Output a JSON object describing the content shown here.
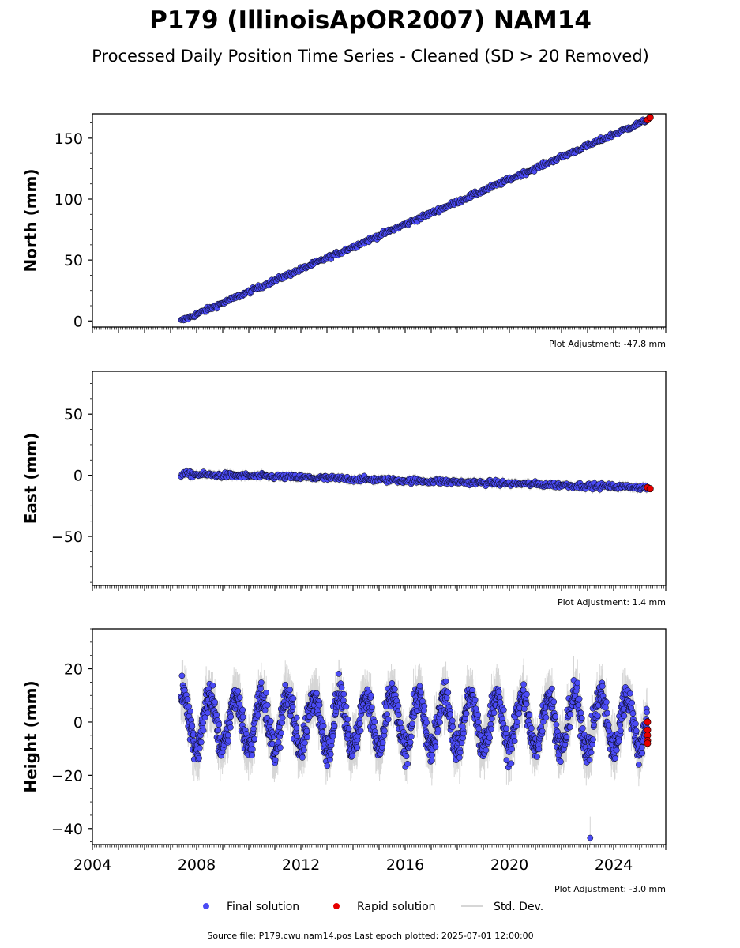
{
  "title": "P179 (IllinoisApOR2007) NAM14",
  "subtitle": "Processed Daily Position Time Series - Cleaned (SD > 20 Removed)",
  "source_text": "Source file: P179.cwu.nam14.pos  Last epoch plotted: 2025-07-01 12:00:00",
  "colors": {
    "final": "#4b4bf5",
    "rapid": "#e60000",
    "stddev": "#b4b4b4",
    "edge": "#000000"
  },
  "legend": {
    "position": "bottom-center",
    "final": "Final solution",
    "rapid": "Rapid solution",
    "stddev": "Std. Dev."
  },
  "chart_data": [
    {
      "type": "scatter",
      "ylabel": "North (mm)",
      "adjustment": "Plot Adjustment: -47.8 mm",
      "xlim": [
        2004,
        2026
      ],
      "ylim": [
        -5,
        170
      ],
      "yticks": [
        0,
        50,
        100,
        150
      ],
      "grid": false,
      "final_trend": {
        "x": [
          2007.4,
          2025.3
        ],
        "y": [
          0,
          165
        ]
      },
      "rapid_points": {
        "x": [
          2025.3,
          2025.4
        ],
        "y": [
          165,
          167
        ]
      }
    },
    {
      "type": "scatter",
      "ylabel": "East (mm)",
      "adjustment": "Plot Adjustment: 1.4 mm",
      "xlim": [
        2004,
        2026
      ],
      "ylim": [
        -90,
        85
      ],
      "yticks": [
        -50,
        0,
        50
      ],
      "grid": false,
      "final_trend": {
        "x": [
          2007.4,
          2025.3
        ],
        "y": [
          1,
          -10
        ]
      },
      "rapid_points": {
        "x": [
          2025.3,
          2025.4
        ],
        "y": [
          -10,
          -11
        ]
      }
    },
    {
      "type": "scatter",
      "ylabel": "Height (mm)",
      "adjustment": "Plot Adjustment: -3.0 mm",
      "xlim": [
        2004,
        2026
      ],
      "ylim": [
        -46,
        35
      ],
      "yticks": [
        -40,
        -20,
        0,
        20
      ],
      "grid": false,
      "final_seasonal": {
        "x_start": 2007.4,
        "x_end": 2025.3,
        "mean": 0,
        "amplitude": 10
      },
      "outlier": {
        "x": 2023.1,
        "y": -43.5
      },
      "rapid_points": {
        "x": [
          2025.3,
          2025.3,
          2025.3,
          2025.3,
          2025.3
        ],
        "y": [
          0,
          -3,
          -5,
          -7,
          -8
        ]
      }
    }
  ],
  "xticks": [
    "2004",
    "2008",
    "2012",
    "2016",
    "2020",
    "2024"
  ]
}
